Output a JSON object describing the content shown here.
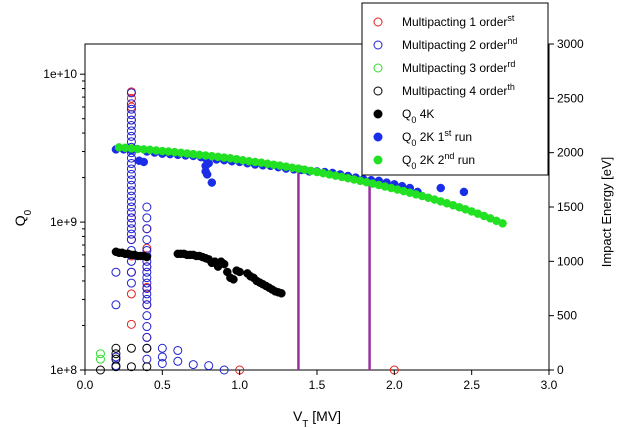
{
  "chart_data": {
    "type": "scatter",
    "xlabel_main": "V",
    "xlabel_sub": "T",
    "xlabel_rest": " [MV]",
    "ylabel_main": "Q",
    "ylabel_sub": "0",
    "y2label": "Impact Energy [eV]",
    "xlim": [
      0.0,
      3.0
    ],
    "xticks": [
      "0.0",
      "0.5",
      "1.0",
      "1.5",
      "2.0",
      "2.5",
      "3.0"
    ],
    "xtick_values": [
      0,
      0.5,
      1.0,
      1.5,
      2.0,
      2.5,
      3.0
    ],
    "ylim_log": [
      100000000.0,
      16000000000.0
    ],
    "yticks": [
      "1e+8",
      "1e+9",
      "1e+10"
    ],
    "ytick_values": [
      100000000.0,
      1000000000.0,
      10000000000.0
    ],
    "y2lim": [
      0,
      3000
    ],
    "y2ticks": [
      "0",
      "500",
      "1000",
      "1500",
      "2000",
      "2500",
      "3000"
    ],
    "y2tick_values": [
      0,
      500,
      1000,
      1500,
      2000,
      2500,
      3000
    ],
    "legend_position": "top-right",
    "legend": [
      {
        "pre": "Multipacting 1",
        "sup": "st",
        "post": " order",
        "color": "#e32020",
        "filled": false
      },
      {
        "pre": "Multipacting 2",
        "sup": "nd",
        "post": " order",
        "color": "#2020d0",
        "filled": false
      },
      {
        "pre": "Multipacting 3",
        "sup": "rd",
        "post": " order",
        "color": "#30dd30",
        "filled": false
      },
      {
        "pre": "Multipacting 4",
        "sup": "th",
        "post": " order",
        "color": "#000000",
        "filled": false
      },
      {
        "pre": "Q",
        "sub": "0",
        "post": " 4K",
        "color": "#000000",
        "filled": true
      },
      {
        "pre": "Q",
        "sub": "0",
        "post": " 2K 1",
        "sup": "st",
        "post2": " run",
        "color": "#1a2ee8",
        "filled": true
      },
      {
        "pre": "Q",
        "sub": "0",
        "post": " 2K 2",
        "sup": "nd",
        "post2": " run",
        "color": "#22e022",
        "filled": true
      }
    ],
    "vertical_lines": {
      "color": "#9b30a0",
      "x": [
        1.38,
        1.84
      ],
      "top_y2": [
        1850,
        1750
      ]
    },
    "q0_series": [
      {
        "name": "Q0 4K",
        "color": "#000000",
        "x": [
          0.2,
          0.22,
          0.24,
          0.26,
          0.28,
          0.3,
          0.32,
          0.34,
          0.36,
          0.38,
          0.4,
          0.6,
          0.62,
          0.64,
          0.66,
          0.68,
          0.7,
          0.72,
          0.74,
          0.76,
          0.78,
          0.8,
          0.82,
          0.84,
          0.86,
          0.88,
          0.9,
          0.92,
          0.94,
          0.96,
          0.98,
          1.0,
          1.05,
          1.07,
          1.09,
          1.11,
          1.13,
          1.15,
          1.17,
          1.19,
          1.21,
          1.23,
          1.25,
          1.27
        ],
        "y": [
          630000000.0,
          620000000.0,
          620000000.0,
          610000000.0,
          610000000.0,
          600000000.0,
          600000000.0,
          590000000.0,
          590000000.0,
          590000000.0,
          580000000.0,
          610000000.0,
          610000000.0,
          610000000.0,
          600000000.0,
          600000000.0,
          600000000.0,
          590000000.0,
          590000000.0,
          580000000.0,
          570000000.0,
          560000000.0,
          530000000.0,
          540000000.0,
          500000000.0,
          540000000.0,
          520000000.0,
          460000000.0,
          420000000.0,
          410000000.0,
          470000000.0,
          460000000.0,
          450000000.0,
          430000000.0,
          420000000.0,
          400000000.0,
          390000000.0,
          380000000.0,
          370000000.0,
          360000000.0,
          350000000.0,
          340000000.0,
          335000000.0,
          330000000.0
        ]
      },
      {
        "name": "Q0 2K 1st run",
        "color": "#1a2ee8",
        "x": [
          0.2,
          0.25,
          0.3,
          0.35,
          0.38,
          0.4,
          0.45,
          0.5,
          0.55,
          0.6,
          0.65,
          0.7,
          0.75,
          0.78,
          0.78,
          0.78,
          0.79,
          0.8,
          0.82,
          0.85,
          0.9,
          0.95,
          1.0,
          1.05,
          1.1,
          1.15,
          1.2,
          1.25,
          1.3,
          1.35,
          1.4,
          1.45,
          1.5,
          1.55,
          1.6,
          1.65,
          1.7,
          1.75,
          1.8,
          1.85,
          1.9,
          1.95,
          2.0,
          2.05,
          2.1,
          2.15,
          2.3,
          2.45
        ],
        "y": [
          3100000000.0,
          3100000000.0,
          3050000000.0,
          2600000000.0,
          2550000000.0,
          3000000000.0,
          2950000000.0,
          2900000000.0,
          2880000000.0,
          2850000000.0,
          2820000000.0,
          2800000000.0,
          2750000000.0,
          2700000000.0,
          2400000000.0,
          2200000000.0,
          2100000000.0,
          2500000000.0,
          1850000000.0,
          2650000000.0,
          2620000000.0,
          2580000000.0,
          2550000000.0,
          2500000000.0,
          2450000000.0,
          2420000000.0,
          2400000000.0,
          2350000000.0,
          2300000000.0,
          2270000000.0,
          2250000000.0,
          2200000000.0,
          2200000000.0,
          2180000000.0,
          2150000000.0,
          2100000000.0,
          2050000000.0,
          2000000000.0,
          1950000000.0,
          1920000000.0,
          1900000000.0,
          1850000000.0,
          1800000000.0,
          1750000000.0,
          1700000000.0,
          1600000000.0,
          1700000000.0,
          1600000000.0
        ]
      },
      {
        "name": "Q0 2K 2nd run",
        "color": "#22e022",
        "x": [
          0.22,
          0.26,
          0.3,
          0.34,
          0.38,
          0.42,
          0.46,
          0.5,
          0.54,
          0.58,
          0.62,
          0.66,
          0.7,
          0.74,
          0.78,
          0.82,
          0.86,
          0.9,
          0.94,
          0.98,
          1.02,
          1.06,
          1.1,
          1.14,
          1.18,
          1.22,
          1.26,
          1.3,
          1.34,
          1.38,
          1.42,
          1.46,
          1.5,
          1.54,
          1.58,
          1.62,
          1.66,
          1.7,
          1.74,
          1.78,
          1.82,
          1.86,
          1.9,
          1.94,
          1.98,
          2.02,
          2.06,
          2.1,
          2.14,
          2.18,
          2.22,
          2.26,
          2.3,
          2.34,
          2.38,
          2.42,
          2.46,
          2.5,
          2.54,
          2.58,
          2.62,
          2.66,
          2.7
        ],
        "y": [
          3200000000.0,
          3180000000.0,
          3150000000.0,
          3120000000.0,
          3100000000.0,
          3080000000.0,
          3050000000.0,
          3020000000.0,
          3000000000.0,
          2970000000.0,
          2940000000.0,
          2910000000.0,
          2880000000.0,
          2850000000.0,
          2820000000.0,
          2790000000.0,
          2760000000.0,
          2730000000.0,
          2700000000.0,
          2660000000.0,
          2620000000.0,
          2580000000.0,
          2550000000.0,
          2520000000.0,
          2480000000.0,
          2440000000.0,
          2410000000.0,
          2370000000.0,
          2330000000.0,
          2300000000.0,
          2260000000.0,
          2220000000.0,
          2180000000.0,
          2140000000.0,
          2100000000.0,
          2060000000.0,
          2020000000.0,
          1980000000.0,
          1940000000.0,
          1900000000.0,
          1860000000.0,
          1820000000.0,
          1780000000.0,
          1740000000.0,
          1700000000.0,
          1660000000.0,
          1620000000.0,
          1580000000.0,
          1540000000.0,
          1500000000.0,
          1460000000.0,
          1420000000.0,
          1380000000.0,
          1340000000.0,
          1300000000.0,
          1260000000.0,
          1220000000.0,
          1180000000.0,
          1140000000.0,
          1100000000.0,
          1060000000.0,
          1020000000.0,
          980000000.0
        ]
      }
    ],
    "multipacting_series": [
      {
        "name": "Multipacting 1st order",
        "color": "#e32020",
        "x": [
          0.3,
          0.3,
          0.3,
          0.3,
          0.3,
          0.3,
          0.3,
          0.3,
          0.3,
          0.3,
          0.4,
          0.4,
          0.4,
          0.4,
          0.4,
          0.4,
          1.0,
          2.0
        ],
        "y": [
          2560,
          2500,
          2420,
          2300,
          1400,
          1200,
          1050,
          900,
          700,
          420,
          1300,
          1120,
          950,
          760,
          600,
          300,
          0,
          0
        ]
      },
      {
        "name": "Multipacting 2nd order",
        "color": "#2020d0",
        "x": [
          0.2,
          0.2,
          0.2,
          0.2,
          0.3,
          0.3,
          0.3,
          0.3,
          0.3,
          0.3,
          0.3,
          0.3,
          0.3,
          0.3,
          0.3,
          0.3,
          0.3,
          0.3,
          0.3,
          0.3,
          0.3,
          0.3,
          0.3,
          0.3,
          0.3,
          0.3,
          0.3,
          0.3,
          0.3,
          0.3,
          0.3,
          0.3,
          0.3,
          0.3,
          0.3,
          0.4,
          0.4,
          0.4,
          0.4,
          0.4,
          0.4,
          0.4,
          0.4,
          0.4,
          0.4,
          0.4,
          0.4,
          0.4,
          0.4,
          0.4,
          0.4,
          0.4,
          0.4,
          0.4,
          0.4,
          0.5,
          0.5,
          0.5,
          0.6,
          0.6,
          0.7,
          0.8,
          0.9
        ],
        "y": [
          900,
          600,
          120,
          40,
          2550,
          2450,
          2400,
          2350,
          2300,
          2250,
          2200,
          2150,
          2100,
          2050,
          2000,
          1950,
          1900,
          1850,
          1800,
          1750,
          1700,
          1650,
          1600,
          1550,
          1500,
          1450,
          1400,
          1350,
          1300,
          1250,
          1200,
          1100,
          1000,
          900,
          800,
          1500,
          1400,
          1300,
          1200,
          1100,
          1050,
          1000,
          950,
          900,
          850,
          800,
          750,
          700,
          650,
          600,
          500,
          400,
          300,
          200,
          100,
          200,
          120,
          60,
          180,
          80,
          50,
          40,
          0
        ]
      },
      {
        "name": "Multipacting 3rd order",
        "color": "#30dd30",
        "x": [
          0.1,
          0.1
        ],
        "y": [
          150,
          100
        ]
      },
      {
        "name": "Multipacting 4th order",
        "color": "#000000",
        "x": [
          0.1,
          0.2,
          0.2,
          0.2,
          0.2,
          0.3,
          0.3,
          0.4,
          0.4
        ],
        "y": [
          0,
          200,
          150,
          100,
          30,
          200,
          30,
          200,
          30
        ]
      }
    ]
  }
}
